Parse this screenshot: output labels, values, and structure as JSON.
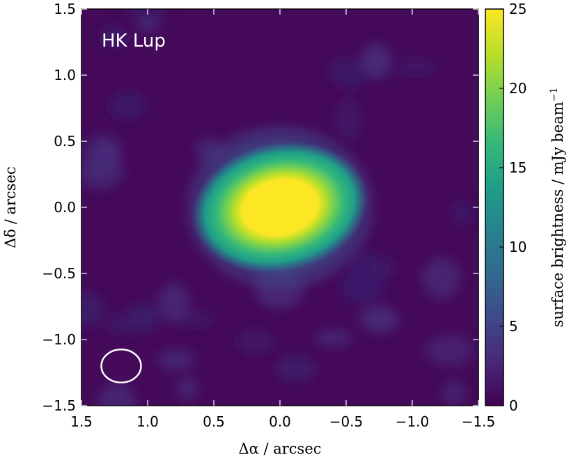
{
  "chart_data": {
    "type": "heatmap",
    "annotation": "HK Lup",
    "xlabel": "Δα / arcsec",
    "ylabel": "Δδ / arcsec",
    "xlim": [
      1.5,
      -1.5
    ],
    "ylim": [
      -1.5,
      1.5
    ],
    "x_ticks": [
      1.5,
      1.0,
      0.5,
      0.0,
      -0.5,
      -1.0,
      -1.5
    ],
    "x_tick_labels": [
      "1.5",
      "1.0",
      "0.5",
      "0.0",
      "−0.5",
      "−1.0",
      "−1.5"
    ],
    "y_ticks": [
      1.5,
      1.0,
      0.5,
      0.0,
      -0.5,
      -1.0,
      -1.5
    ],
    "y_tick_labels": [
      "1.5",
      "1.0",
      "0.5",
      "0.0",
      "−0.5",
      "−1.0",
      "−1.5"
    ],
    "colorbar": {
      "label": "surface brightness / mJy beam",
      "label_superscript": "−1",
      "range": [
        0,
        25
      ],
      "ticks": [
        25,
        20,
        15,
        10,
        5,
        0
      ],
      "tick_labels": [
        "25",
        "20",
        "15",
        "10",
        "5",
        "0"
      ],
      "colormap": [
        "#440154",
        "#482878",
        "#3e4989",
        "#31688e",
        "#26828e",
        "#1f9e89",
        "#35b779",
        "#6ece58",
        "#b5de2b",
        "#fde725"
      ]
    },
    "emission": {
      "peak_center": [
        0.0,
        0.0
      ],
      "peak_saturated_value": 25,
      "core_fwhm_arcsec": [
        0.5,
        0.36
      ],
      "halo_radius_arcsec": 0.8,
      "halo_level": 4,
      "background_level": 1
    },
    "beam": {
      "center": [
        1.2,
        -1.2
      ],
      "major_arcsec": 0.3,
      "minor_arcsec": 0.25,
      "color": "#ffffff"
    }
  }
}
